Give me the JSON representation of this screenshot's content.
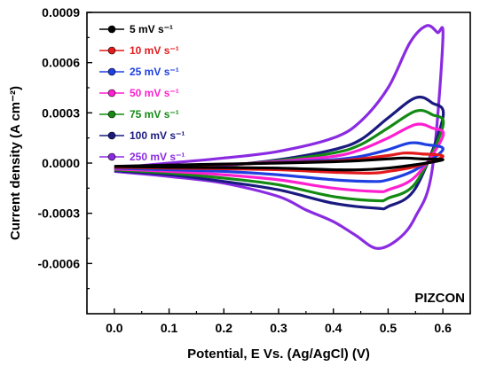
{
  "chart_data": {
    "type": "line",
    "title": "",
    "xlabel": "Potential, E Vs. (Ag/AgCl) (V)",
    "ylabel": "Current density (A cm⁻²)",
    "xlim": [
      -0.05,
      0.65
    ],
    "ylim": [
      -0.0009,
      0.0009
    ],
    "xticks": [
      0.0,
      0.1,
      0.2,
      0.3,
      0.4,
      0.5,
      0.6
    ],
    "xtick_labels": [
      "0.0",
      "0.1",
      "0.2",
      "0.3",
      "0.4",
      "0.5",
      "0.6"
    ],
    "yticks": [
      -0.0006,
      -0.0003,
      0.0,
      0.0003,
      0.0006,
      0.0009
    ],
    "ytick_labels": [
      "-0.0006",
      "-0.0003",
      "0.0000",
      "0.0003",
      "0.0006",
      "0.0009"
    ],
    "grid": false,
    "legend_position": "top-left",
    "annotation": "PIZCON",
    "series": [
      {
        "name": "5 mV s⁻¹",
        "color": "#000000",
        "anodic": [
          [
            0.0,
            -2e-05
          ],
          [
            0.1,
            -1.2e-05
          ],
          [
            0.2,
            -6e-06
          ],
          [
            0.3,
            0.0
          ],
          [
            0.4,
            8e-06
          ],
          [
            0.45,
            1.5e-05
          ],
          [
            0.5,
            2.5e-05
          ],
          [
            0.53,
            3e-05
          ],
          [
            0.56,
            2.5e-05
          ],
          [
            0.6,
            2e-05
          ]
        ],
        "cathodic": [
          [
            0.6,
            1e-05
          ],
          [
            0.55,
            -1e-05
          ],
          [
            0.5,
            -3e-05
          ],
          [
            0.45,
            -4e-05
          ],
          [
            0.4,
            -4e-05
          ],
          [
            0.3,
            -3e-05
          ],
          [
            0.2,
            -2.7e-05
          ],
          [
            0.1,
            -2.5e-05
          ],
          [
            0.0,
            -2e-05
          ]
        ]
      },
      {
        "name": "10 mV s⁻¹",
        "color": "#e41a1c",
        "anodic": [
          [
            0.0,
            -2.5e-05
          ],
          [
            0.1,
            -1.5e-05
          ],
          [
            0.2,
            -8e-06
          ],
          [
            0.3,
            2e-06
          ],
          [
            0.4,
            1.2e-05
          ],
          [
            0.45,
            2.5e-05
          ],
          [
            0.5,
            4.5e-05
          ],
          [
            0.53,
            6e-05
          ],
          [
            0.56,
            5.5e-05
          ],
          [
            0.6,
            4e-05
          ]
        ],
        "cathodic": [
          [
            0.6,
            1.5e-05
          ],
          [
            0.55,
            -2e-05
          ],
          [
            0.5,
            -5e-05
          ],
          [
            0.47,
            -6e-05
          ],
          [
            0.4,
            -5.5e-05
          ],
          [
            0.3,
            -4e-05
          ],
          [
            0.2,
            -3.4e-05
          ],
          [
            0.1,
            -3e-05
          ],
          [
            0.0,
            -2.5e-05
          ]
        ]
      },
      {
        "name": "25 mV s⁻¹",
        "color": "#1f3fe0",
        "anodic": [
          [
            0.0,
            -3e-05
          ],
          [
            0.1,
            -2e-05
          ],
          [
            0.2,
            -1e-05
          ],
          [
            0.3,
            5e-06
          ],
          [
            0.4,
            2e-05
          ],
          [
            0.45,
            4e-05
          ],
          [
            0.5,
            8e-05
          ],
          [
            0.54,
            0.00012
          ],
          [
            0.57,
            0.00011
          ],
          [
            0.6,
            8e-05
          ]
        ],
        "cathodic": [
          [
            0.6,
            2e-05
          ],
          [
            0.55,
            -4e-05
          ],
          [
            0.5,
            -0.0001
          ],
          [
            0.47,
            -0.00011
          ],
          [
            0.4,
            -0.0001
          ],
          [
            0.3,
            -7e-05
          ],
          [
            0.2,
            -5e-05
          ],
          [
            0.1,
            -4e-05
          ],
          [
            0.0,
            -3e-05
          ]
        ]
      },
      {
        "name": "50 mV s⁻¹",
        "color": "#ff1fd0",
        "anodic": [
          [
            0.0,
            -3.5e-05
          ],
          [
            0.1,
            -2.5e-05
          ],
          [
            0.2,
            -1.2e-05
          ],
          [
            0.3,
            1e-05
          ],
          [
            0.4,
            4e-05
          ],
          [
            0.45,
            8e-05
          ],
          [
            0.5,
            0.00015
          ],
          [
            0.55,
            0.00023
          ],
          [
            0.58,
            0.00021
          ],
          [
            0.6,
            0.00016
          ]
        ],
        "cathodic": [
          [
            0.6,
            3e-05
          ],
          [
            0.55,
            -8e-05
          ],
          [
            0.5,
            -0.00016
          ],
          [
            0.48,
            -0.00017
          ],
          [
            0.4,
            -0.00015
          ],
          [
            0.3,
            -0.0001
          ],
          [
            0.2,
            -7e-05
          ],
          [
            0.1,
            -5e-05
          ],
          [
            0.0,
            -3.5e-05
          ]
        ]
      },
      {
        "name": "75 mV s⁻¹",
        "color": "#138a13",
        "anodic": [
          [
            0.0,
            -4e-05
          ],
          [
            0.1,
            -2.8e-05
          ],
          [
            0.2,
            -1.5e-05
          ],
          [
            0.3,
            1.5e-05
          ],
          [
            0.4,
            6e-05
          ],
          [
            0.45,
            0.00011
          ],
          [
            0.5,
            0.00021
          ],
          [
            0.55,
            0.00031
          ],
          [
            0.58,
            0.00029
          ],
          [
            0.6,
            0.00022
          ]
        ],
        "cathodic": [
          [
            0.6,
            4e-05
          ],
          [
            0.55,
            -0.00012
          ],
          [
            0.5,
            -0.00021
          ],
          [
            0.48,
            -0.000225
          ],
          [
            0.4,
            -0.0002
          ],
          [
            0.3,
            -0.00013
          ],
          [
            0.2,
            -9e-05
          ],
          [
            0.1,
            -6e-05
          ],
          [
            0.0,
            -4e-05
          ]
        ]
      },
      {
        "name": "100 mV s⁻¹",
        "color": "#1a1a80",
        "anodic": [
          [
            0.0,
            -4.5e-05
          ],
          [
            0.1,
            -3e-05
          ],
          [
            0.2,
            -1.5e-05
          ],
          [
            0.3,
            2e-05
          ],
          [
            0.4,
            8e-05
          ],
          [
            0.45,
            0.00014
          ],
          [
            0.5,
            0.00027
          ],
          [
            0.55,
            0.00039
          ],
          [
            0.58,
            0.00036
          ],
          [
            0.6,
            0.00027
          ]
        ],
        "cathodic": [
          [
            0.6,
            5e-05
          ],
          [
            0.55,
            -0.00015
          ],
          [
            0.5,
            -0.00026
          ],
          [
            0.48,
            -0.00027
          ],
          [
            0.4,
            -0.00024
          ],
          [
            0.3,
            -0.00016
          ],
          [
            0.2,
            -0.00011
          ],
          [
            0.1,
            -7e-05
          ],
          [
            0.0,
            -4.5e-05
          ]
        ]
      },
      {
        "name": "250 mV s⁻¹",
        "color": "#8a2be2",
        "anodic": [
          [
            0.0,
            -3e-05
          ],
          [
            0.1,
            0.0
          ],
          [
            0.2,
            3e-05
          ],
          [
            0.3,
            7e-05
          ],
          [
            0.4,
            0.00015
          ],
          [
            0.45,
            0.00025
          ],
          [
            0.5,
            0.00045
          ],
          [
            0.54,
            0.00072
          ],
          [
            0.57,
            0.00082
          ],
          [
            0.59,
            0.00078
          ],
          [
            0.6,
            0.00074
          ]
        ],
        "cathodic": [
          [
            0.6,
            0.00035
          ],
          [
            0.58,
            -5e-05
          ],
          [
            0.55,
            -0.00032
          ],
          [
            0.52,
            -0.00045
          ],
          [
            0.48,
            -0.00051
          ],
          [
            0.44,
            -0.00043
          ],
          [
            0.4,
            -0.00035
          ],
          [
            0.35,
            -0.00028
          ],
          [
            0.3,
            -0.0002
          ],
          [
            0.2,
            -0.00012
          ],
          [
            0.1,
            -8e-05
          ],
          [
            0.0,
            -5e-05
          ]
        ]
      }
    ]
  }
}
